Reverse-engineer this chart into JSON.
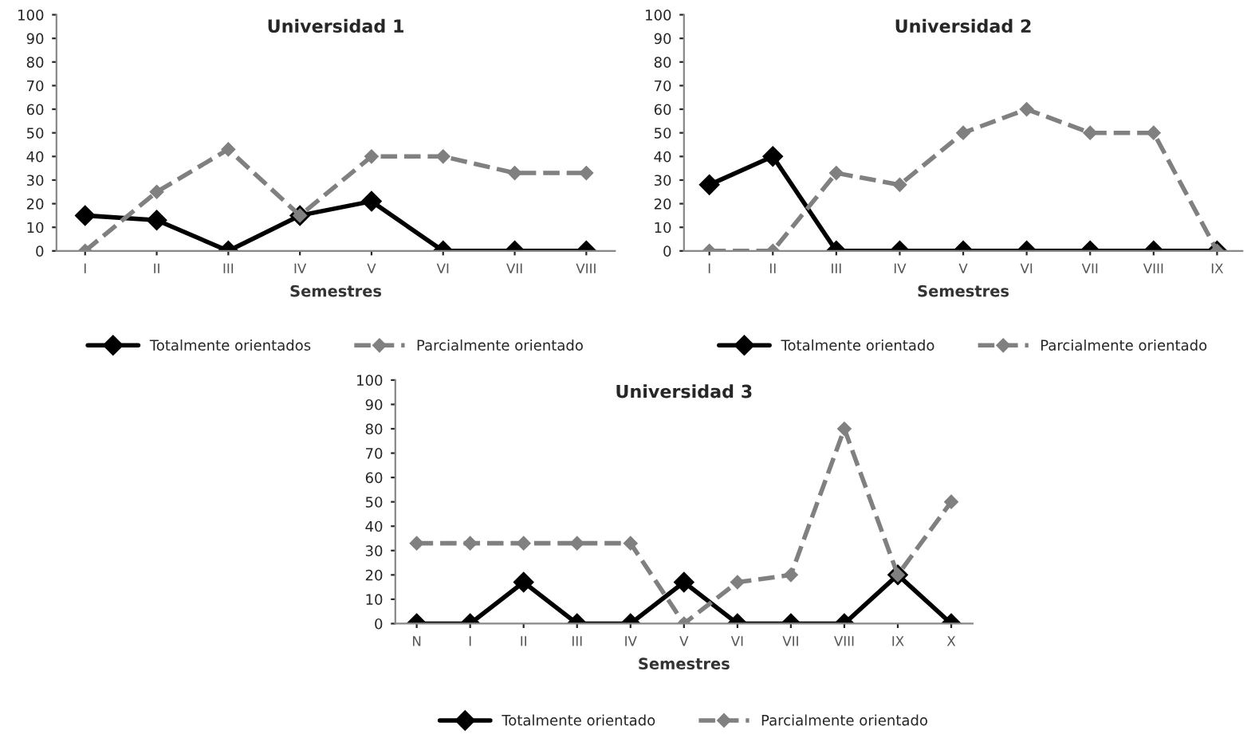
{
  "chart_data": [
    {
      "type": "line",
      "title": "Universidad 1",
      "xlabel": "Semestres",
      "categories": [
        "I",
        "II",
        "III",
        "IV",
        "V",
        "VI",
        "VII",
        "VIII"
      ],
      "ylim": [
        0,
        100
      ],
      "yticks": [
        0,
        10,
        20,
        30,
        40,
        50,
        60,
        70,
        80,
        90,
        100
      ],
      "marker": "diamond",
      "legend": "bottom",
      "grid": false,
      "series": [
        {
          "name": "Totalmente orientados",
          "color": "#000000",
          "line_style": "solid",
          "values": [
            15,
            13,
            0,
            15,
            21,
            0,
            0,
            0
          ]
        },
        {
          "name": "Parcialmente orientado",
          "color": "#808080",
          "line_style": "dashed",
          "values": [
            0,
            25,
            43,
            15,
            40,
            40,
            33,
            33
          ]
        }
      ]
    },
    {
      "type": "line",
      "title": "Universidad 2",
      "xlabel": "Semestres",
      "categories": [
        "I",
        "II",
        "III",
        "IV",
        "V",
        "VI",
        "VII",
        "VIII",
        "IX"
      ],
      "ylim": [
        0,
        100
      ],
      "yticks": [
        0,
        10,
        20,
        30,
        40,
        50,
        60,
        70,
        80,
        90,
        100
      ],
      "marker": "diamond",
      "legend": "bottom",
      "grid": false,
      "series": [
        {
          "name": "Totalmente orientado",
          "color": "#000000",
          "line_style": "solid",
          "values": [
            28,
            40,
            0,
            0,
            0,
            0,
            0,
            0,
            0
          ]
        },
        {
          "name": "Parcialmente orientado",
          "color": "#808080",
          "line_style": "dashed",
          "values": [
            0,
            0,
            33,
            28,
            50,
            60,
            50,
            50,
            0
          ]
        }
      ]
    },
    {
      "type": "line",
      "title": "Universidad 3",
      "xlabel": "Semestres",
      "categories": [
        "N",
        "I",
        "II",
        "III",
        "IV",
        "V",
        "VI",
        "VII",
        "VIII",
        "IX",
        "X"
      ],
      "ylim": [
        0,
        100
      ],
      "yticks": [
        0,
        10,
        20,
        30,
        40,
        50,
        60,
        70,
        80,
        90,
        100
      ],
      "marker": "diamond",
      "legend": "bottom",
      "grid": false,
      "series": [
        {
          "name": "Totalmente orientado",
          "color": "#000000",
          "line_style": "solid",
          "values": [
            0,
            0,
            17,
            0,
            0,
            17,
            0,
            0,
            0,
            20,
            0
          ]
        },
        {
          "name": "Parcialmente orientado",
          "color": "#808080",
          "line_style": "dashed",
          "values": [
            33,
            33,
            33,
            33,
            33,
            0,
            17,
            20,
            80,
            20,
            50
          ]
        }
      ]
    }
  ]
}
